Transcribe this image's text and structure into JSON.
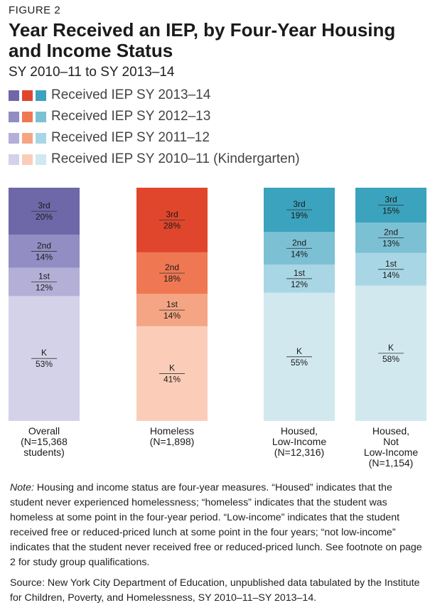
{
  "figure_label": "FIGURE 2",
  "title": "Year Received an IEP, by Four-Year Housing and Income Status",
  "subtitle": "SY 2010–11 to SY 2013–14",
  "legend": [
    {
      "label": "Received IEP SY 2013–14",
      "colors": [
        "#6e68a8",
        "#e0462c",
        "#3ba3bd"
      ]
    },
    {
      "label": "Received IEP SY 2012–13",
      "colors": [
        "#928dc2",
        "#ef7853",
        "#7cc0d4"
      ]
    },
    {
      "label": "Received IEP SY 2011–12",
      "colors": [
        "#b4afd6",
        "#f5a583",
        "#a9d6e4"
      ]
    },
    {
      "label": "Received IEP SY 2010–11 (Kindergarten)",
      "colors": [
        "#d4d2e8",
        "#fbcdb8",
        "#d1e8ef"
      ]
    }
  ],
  "chart_data": {
    "type": "bar",
    "stacked": true,
    "categories": [
      "Overall (N=15,368 students)",
      "Homeless (N=1,898)",
      "Housed, Low-Income (N=12,316)",
      "Housed, Not Low-Income (N=1,154)"
    ],
    "category_lines": [
      [
        "Overall",
        "(N=15,368",
        "students)"
      ],
      [
        "Homeless",
        "(N=1,898)"
      ],
      [
        "Housed,",
        "Low-Income",
        "(N=12,316)"
      ],
      [
        "Housed,",
        "Not",
        "Low-Income",
        "(N=1,154)"
      ]
    ],
    "segment_order_bottom_to_top": [
      "K",
      "1st",
      "2nd",
      "3rd"
    ],
    "values": [
      {
        "K": 53,
        "1st": 12,
        "2nd": 14,
        "3rd": 20
      },
      {
        "K": 41,
        "1st": 14,
        "2nd": 18,
        "3rd": 28
      },
      {
        "K": 55,
        "1st": 12,
        "2nd": 14,
        "3rd": 19
      },
      {
        "K": 58,
        "1st": 14,
        "2nd": 13,
        "3rd": 15
      }
    ],
    "unit": "%",
    "colors": [
      {
        "K": "#d4d2e8",
        "1st": "#b4afd6",
        "2nd": "#928dc2",
        "3rd": "#6e68a8"
      },
      {
        "K": "#fbcdb8",
        "1st": "#f5a583",
        "2nd": "#ef7853",
        "3rd": "#e0462c"
      },
      {
        "K": "#d1e8ef",
        "1st": "#a9d6e4",
        "2nd": "#7cc0d4",
        "3rd": "#3ba3bd"
      },
      {
        "K": "#d1e8ef",
        "1st": "#a9d6e4",
        "2nd": "#7cc0d4",
        "3rd": "#3ba3bd"
      }
    ]
  },
  "note": {
    "lead": "Note:",
    "text": " Housing and income status are four-year measures. “Housed” indicates that the student never experienced homelessness; “homeless” indicates that the student was homeless at some point in the four-year period. “Low-income” indicates that the student received free or reduced-priced lunch at some point in the four years; “not low-income” indicates that the student never received free or reduced-priced lunch. See footnote on page 2 for study group qualifications."
  },
  "source": "Source: New York City Department of Education, unpublished data tabulated by the Institute for Children, Poverty, and Homelessness, SY 2010–11–SY 2013–14."
}
